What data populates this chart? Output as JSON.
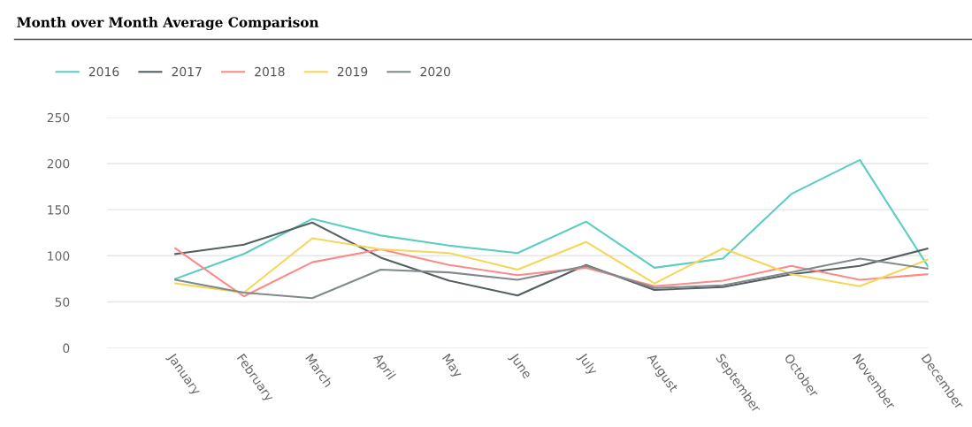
{
  "chart_data": {
    "type": "line",
    "title": "Month over Month Average Comparison",
    "categories": [
      "January",
      "February",
      "March",
      "April",
      "May",
      "June",
      "July",
      "August",
      "September",
      "October",
      "November",
      "December"
    ],
    "series": [
      {
        "name": "2016",
        "color": "#5ccdc0",
        "values": [
          75,
          102,
          140,
          122,
          111,
          103,
          137,
          87,
          97,
          167,
          204,
          88
        ]
      },
      {
        "name": "2017",
        "color": "#555f61",
        "values": [
          102,
          112,
          136,
          98,
          73,
          57,
          90,
          63,
          66,
          80,
          89,
          108
        ]
      },
      {
        "name": "2018",
        "color": "#fd8a87",
        "values": [
          108,
          56,
          93,
          107,
          90,
          79,
          87,
          67,
          73,
          89,
          74,
          80
        ]
      },
      {
        "name": "2019",
        "color": "#f5d65a",
        "values": [
          70,
          60,
          119,
          107,
          103,
          85,
          115,
          70,
          108,
          80,
          67,
          96
        ]
      },
      {
        "name": "2020",
        "color": "#808a8b",
        "values": [
          74,
          60,
          54,
          85,
          82,
          74,
          89,
          65,
          68,
          82,
          97,
          86
        ]
      }
    ],
    "ylim": [
      0,
      250
    ],
    "yticks": [
      0,
      50,
      100,
      150,
      200,
      250
    ],
    "grid": "y",
    "legend": "top left",
    "marker": "none",
    "line_style": "solid"
  }
}
